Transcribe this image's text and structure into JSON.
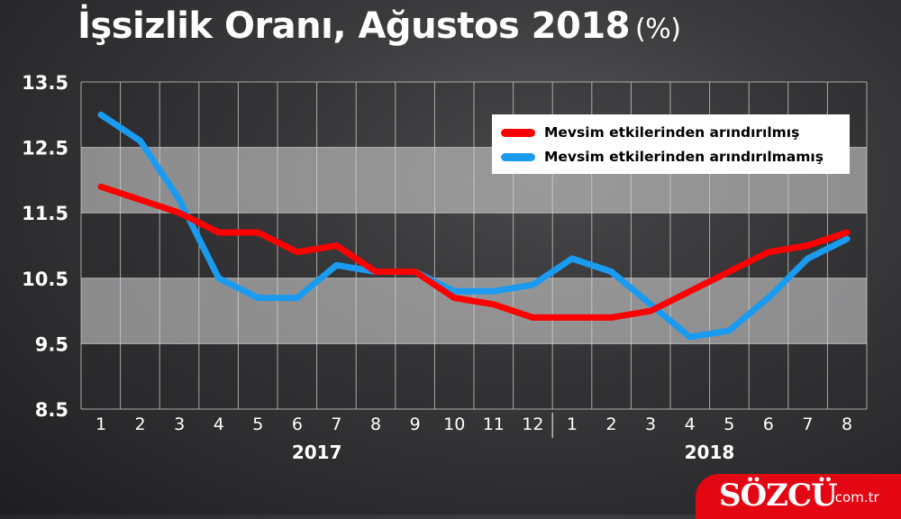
{
  "title": "İşsizlik Oranı, Ağustos 2018",
  "title_unit": "(%)",
  "logo": {
    "name": "SÖZCÜ",
    "domain": ".com.tr"
  },
  "chart_data": {
    "type": "line",
    "title": "İşsizlik Oranı, Ağustos 2018 (%)",
    "x": [
      "1",
      "2",
      "3",
      "4",
      "5",
      "6",
      "7",
      "8",
      "9",
      "10",
      "11",
      "12",
      "1",
      "2",
      "3",
      "4",
      "5",
      "6",
      "7",
      "8"
    ],
    "year_labels": [
      {
        "label": "2017",
        "months": [
          0,
          11
        ]
      },
      {
        "label": "2018",
        "months": [
          12,
          19
        ]
      }
    ],
    "ylim": [
      8.5,
      13.5
    ],
    "yticks": [
      "8.5",
      "9.5",
      "10.5",
      "11.5",
      "12.5",
      "13.5"
    ],
    "grid": true,
    "legend_position": "top-right",
    "series": [
      {
        "name": "Mevsim etkilerinden arındırılmış",
        "color": "#ff0000",
        "values": [
          11.9,
          11.7,
          11.5,
          11.2,
          11.2,
          10.9,
          11.0,
          10.6,
          10.6,
          10.2,
          10.1,
          9.9,
          9.9,
          9.9,
          10.0,
          10.3,
          10.6,
          10.9,
          11.0,
          11.2
        ]
      },
      {
        "name": "Mevsim etkilerinden arındırılmamış",
        "color": "#1a9bf0",
        "values": [
          13.0,
          12.6,
          11.7,
          10.5,
          10.2,
          10.2,
          10.7,
          10.6,
          10.6,
          10.3,
          10.3,
          10.4,
          10.8,
          10.6,
          10.1,
          9.6,
          9.7,
          10.2,
          10.8,
          11.1
        ]
      }
    ]
  }
}
